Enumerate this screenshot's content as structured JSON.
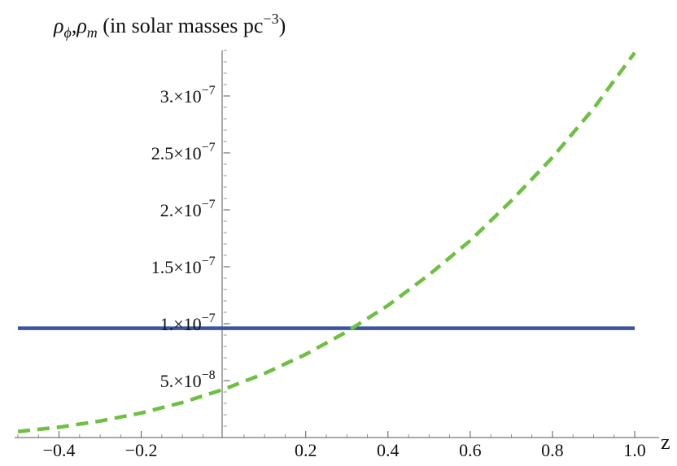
{
  "chart_data": {
    "type": "line",
    "title": "",
    "ylabel": {
      "rho": "ρ",
      "sub_phi": "ϕ",
      "sep": ",",
      "sub_m": "m",
      "unit_text": " (in solar masses pc",
      "unit_exp": "−3",
      "close": ")"
    },
    "xlabel": "z",
    "xlim": [
      -0.5,
      1.0
    ],
    "ylim": [
      0,
      3.45e-07
    ],
    "x_ticks": [
      {
        "value": -0.4,
        "label": "−0.4"
      },
      {
        "value": -0.2,
        "label": "−0.2"
      },
      {
        "value": 0.2,
        "label": "0.2"
      },
      {
        "value": 0.4,
        "label": "0.4"
      },
      {
        "value": 0.6,
        "label": "0.6"
      },
      {
        "value": 0.8,
        "label": "0.8"
      },
      {
        "value": 1.0,
        "label": "1.0"
      }
    ],
    "y_ticks": [
      {
        "value": 5e-08,
        "mant": "5.",
        "times": "×",
        "base": "10",
        "exp": "−8"
      },
      {
        "value": 1e-07,
        "mant": "1.",
        "times": "×",
        "base": "10",
        "exp": "−7"
      },
      {
        "value": 1.5e-07,
        "mant": "1.5",
        "times": "×",
        "base": "10",
        "exp": "−7"
      },
      {
        "value": 2e-07,
        "mant": "2.",
        "times": "×",
        "base": "10",
        "exp": "−7"
      },
      {
        "value": 2.5e-07,
        "mant": "2.5",
        "times": "×",
        "base": "10",
        "exp": "−7"
      },
      {
        "value": 3e-07,
        "mant": "3.",
        "times": "×",
        "base": "10",
        "exp": "−7"
      }
    ],
    "series": [
      {
        "style": "solid",
        "color": "#3b54a0",
        "x": [
          -0.5,
          1.0
        ],
        "y": [
          9.6e-08,
          9.6e-08
        ]
      },
      {
        "style": "dashed",
        "color": "#6dc041",
        "x": [
          -0.5,
          -0.4,
          -0.3,
          -0.2,
          -0.1,
          0.0,
          0.1,
          0.2,
          0.3,
          0.4,
          0.5,
          0.6,
          0.7,
          0.8,
          0.9,
          1.0
        ],
        "y": [
          5.3e-09,
          9.1e-09,
          1.45e-08,
          2.16e-08,
          3.08e-08,
          4.23e-08,
          5.63e-08,
          7.31e-08,
          9.3e-08,
          1.16e-07,
          1.43e-07,
          1.73e-07,
          2.08e-07,
          2.46e-07,
          2.89e-07,
          3.38e-07
        ]
      }
    ]
  }
}
